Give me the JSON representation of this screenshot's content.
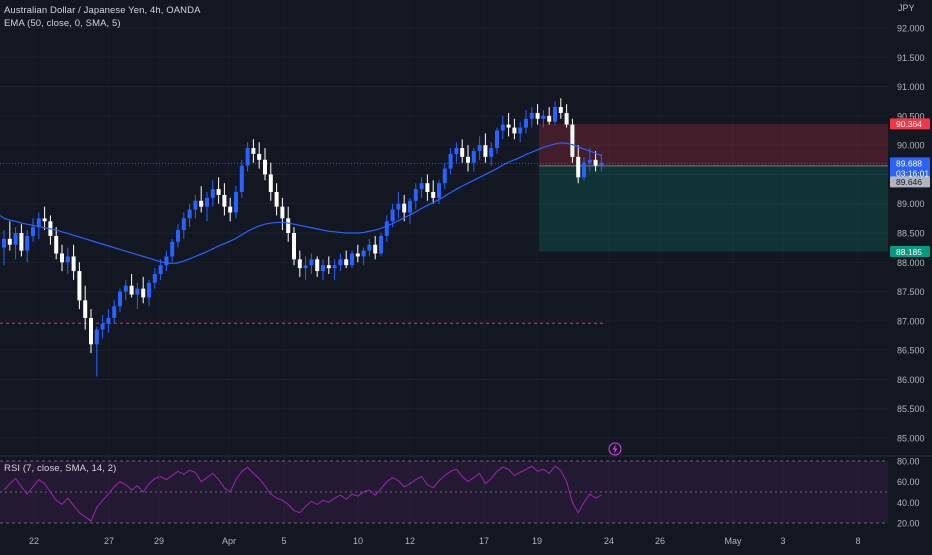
{
  "header": {
    "symbol_line": "Australian Dollar / Japanese Yen, 4h, OANDA",
    "indicator_line": "EMA (50, close, 0, SMA, 5)",
    "currency": "JPY"
  },
  "rsi_panel": {
    "label": "RSI (7, close, SMA, 14, 2)",
    "levels": [
      80,
      50,
      20
    ],
    "ticks": [
      "80.00",
      "60.00",
      "40.00",
      "20.00"
    ]
  },
  "price_axis": {
    "ticks": [
      "92.000",
      "91.500",
      "91.000",
      "90.500",
      "90.000",
      "89.500",
      "89.000",
      "88.500",
      "88.000",
      "87.500",
      "87.000",
      "86.500",
      "86.000",
      "85.500",
      "85.000"
    ],
    "ylim": [
      84.85,
      92.35
    ]
  },
  "price_labels": {
    "stop": "90.364",
    "current": "89.688",
    "countdown": "03:16:01",
    "entry": "89.646",
    "target": "88.185"
  },
  "colors": {
    "background": "#131722",
    "bull": "#2962ff",
    "bear": "#ffffff",
    "ema": "#2962ff",
    "rsi": "#9c27b0",
    "stop_zone": "#f23645",
    "target_zone": "#089981",
    "support_line": "#f23645"
  },
  "chart_data": {
    "type": "candlestick",
    "title": "Australian Dollar / Japanese Yen, 4h, OANDA",
    "x_axis": {
      "ticks": [
        "22",
        "27",
        "29",
        "Apr",
        "5",
        "10",
        "12",
        "17",
        "19",
        "24",
        "26",
        "May",
        "3",
        "8"
      ]
    },
    "support_level": 86.96,
    "ema_period": 50,
    "position": {
      "type": "short",
      "entry": 89.646,
      "stop": 90.364,
      "target": 88.185
    },
    "current_price": 89.688,
    "ohlc": [
      [
        88.25,
        88.55,
        87.95,
        88.4
      ],
      [
        88.4,
        88.7,
        88.2,
        88.3
      ],
      [
        88.3,
        88.6,
        88.05,
        88.5
      ],
      [
        88.5,
        88.65,
        88.1,
        88.2
      ],
      [
        88.2,
        88.55,
        88.0,
        88.45
      ],
      [
        88.45,
        88.75,
        88.35,
        88.6
      ],
      [
        88.6,
        88.85,
        88.4,
        88.75
      ],
      [
        88.75,
        88.95,
        88.55,
        88.7
      ],
      [
        88.7,
        88.8,
        88.3,
        88.45
      ],
      [
        88.45,
        88.6,
        88.05,
        88.15
      ],
      [
        88.15,
        88.3,
        87.85,
        88.0
      ],
      [
        88.0,
        88.25,
        87.8,
        88.1
      ],
      [
        88.1,
        88.3,
        87.7,
        87.85
      ],
      [
        87.85,
        88.0,
        87.2,
        87.35
      ],
      [
        87.35,
        87.6,
        86.85,
        87.05
      ],
      [
        87.05,
        87.2,
        86.45,
        86.6
      ],
      [
        86.6,
        86.9,
        86.05,
        86.85
      ],
      [
        86.85,
        87.1,
        86.7,
        86.95
      ],
      [
        86.95,
        87.2,
        86.8,
        87.05
      ],
      [
        87.05,
        87.35,
        86.95,
        87.25
      ],
      [
        87.25,
        87.55,
        87.15,
        87.5
      ],
      [
        87.5,
        87.7,
        87.35,
        87.6
      ],
      [
        87.6,
        87.8,
        87.4,
        87.45
      ],
      [
        87.45,
        87.65,
        87.2,
        87.55
      ],
      [
        87.55,
        87.75,
        87.3,
        87.4
      ],
      [
        87.4,
        87.7,
        87.25,
        87.65
      ],
      [
        87.65,
        87.9,
        87.55,
        87.8
      ],
      [
        87.8,
        88.05,
        87.7,
        87.95
      ],
      [
        87.95,
        88.2,
        87.85,
        88.1
      ],
      [
        88.1,
        88.4,
        88.0,
        88.35
      ],
      [
        88.35,
        88.65,
        88.25,
        88.55
      ],
      [
        88.55,
        88.85,
        88.4,
        88.75
      ],
      [
        88.75,
        89.0,
        88.6,
        88.9
      ],
      [
        88.9,
        89.15,
        88.75,
        89.05
      ],
      [
        89.05,
        89.3,
        88.85,
        88.95
      ],
      [
        88.95,
        89.2,
        88.7,
        89.1
      ],
      [
        89.1,
        89.4,
        88.95,
        89.25
      ],
      [
        89.25,
        89.45,
        89.0,
        89.15
      ],
      [
        89.15,
        89.35,
        88.8,
        88.95
      ],
      [
        88.95,
        89.1,
        88.7,
        88.85
      ],
      [
        88.85,
        89.3,
        88.75,
        89.2
      ],
      [
        89.2,
        89.75,
        89.1,
        89.65
      ],
      [
        89.65,
        90.05,
        89.55,
        89.95
      ],
      [
        89.95,
        90.1,
        89.7,
        89.85
      ],
      [
        89.85,
        90.05,
        89.6,
        89.75
      ],
      [
        89.75,
        89.95,
        89.4,
        89.5
      ],
      [
        89.5,
        89.7,
        89.05,
        89.2
      ],
      [
        89.2,
        89.35,
        88.8,
        88.95
      ],
      [
        88.95,
        89.1,
        88.55,
        88.75
      ],
      [
        88.75,
        88.95,
        88.35,
        88.5
      ],
      [
        88.5,
        88.6,
        87.95,
        88.05
      ],
      [
        88.05,
        88.2,
        87.75,
        87.9
      ],
      [
        87.9,
        88.1,
        87.7,
        87.95
      ],
      [
        87.95,
        88.15,
        87.8,
        88.05
      ],
      [
        88.05,
        88.1,
        87.75,
        87.85
      ],
      [
        87.85,
        88.05,
        87.7,
        87.95
      ],
      [
        87.95,
        88.1,
        87.8,
        87.9
      ],
      [
        87.9,
        88.05,
        87.7,
        87.95
      ],
      [
        87.95,
        88.15,
        87.85,
        88.05
      ],
      [
        88.05,
        88.2,
        87.9,
        87.95
      ],
      [
        87.95,
        88.2,
        87.9,
        88.15
      ],
      [
        88.15,
        88.3,
        88.0,
        88.1
      ],
      [
        88.1,
        88.25,
        87.95,
        88.2
      ],
      [
        88.2,
        88.4,
        88.1,
        88.3
      ],
      [
        88.3,
        88.45,
        88.05,
        88.15
      ],
      [
        88.15,
        88.5,
        88.1,
        88.45
      ],
      [
        88.45,
        88.8,
        88.35,
        88.7
      ],
      [
        88.7,
        89.0,
        88.6,
        88.9
      ],
      [
        88.9,
        89.2,
        88.75,
        89.0
      ],
      [
        89.0,
        89.15,
        88.7,
        88.85
      ],
      [
        88.85,
        89.1,
        88.65,
        89.05
      ],
      [
        89.05,
        89.35,
        88.9,
        89.25
      ],
      [
        89.25,
        89.45,
        89.1,
        89.35
      ],
      [
        89.35,
        89.5,
        89.05,
        89.2
      ],
      [
        89.2,
        89.4,
        89.0,
        89.1
      ],
      [
        89.1,
        89.4,
        89.0,
        89.35
      ],
      [
        89.35,
        89.7,
        89.25,
        89.6
      ],
      [
        89.6,
        89.95,
        89.5,
        89.85
      ],
      [
        89.85,
        90.05,
        89.7,
        89.95
      ],
      [
        89.95,
        90.1,
        89.7,
        89.8
      ],
      [
        89.8,
        90.0,
        89.55,
        89.7
      ],
      [
        89.7,
        89.95,
        89.55,
        89.9
      ],
      [
        89.9,
        90.15,
        89.75,
        90.0
      ],
      [
        90.0,
        90.2,
        89.7,
        89.8
      ],
      [
        89.8,
        90.05,
        89.65,
        89.95
      ],
      [
        89.95,
        90.3,
        89.85,
        90.25
      ],
      [
        90.25,
        90.5,
        90.1,
        90.35
      ],
      [
        90.35,
        90.55,
        90.15,
        90.3
      ],
      [
        90.3,
        90.45,
        90.1,
        90.2
      ],
      [
        90.2,
        90.4,
        90.05,
        90.3
      ],
      [
        90.3,
        90.6,
        90.2,
        90.45
      ],
      [
        90.45,
        90.65,
        90.3,
        90.55
      ],
      [
        90.55,
        90.7,
        90.35,
        90.45
      ],
      [
        90.45,
        90.6,
        90.3,
        90.5
      ],
      [
        90.5,
        90.65,
        90.35,
        90.4
      ],
      [
        90.4,
        90.75,
        90.35,
        90.65
      ],
      [
        90.65,
        90.8,
        90.45,
        90.55
      ],
      [
        90.55,
        90.7,
        90.3,
        90.35
      ],
      [
        90.35,
        90.45,
        89.7,
        89.8
      ],
      [
        89.8,
        90.0,
        89.35,
        89.45
      ],
      [
        89.45,
        89.8,
        89.4,
        89.7
      ],
      [
        89.7,
        89.95,
        89.55,
        89.75
      ],
      [
        89.75,
        89.9,
        89.55,
        89.65
      ],
      [
        89.65,
        89.85,
        89.55,
        89.7
      ]
    ],
    "ema": [
      88.75,
      88.72,
      88.7,
      88.67,
      88.65,
      88.63,
      88.61,
      88.59,
      88.57,
      88.55,
      88.52,
      88.49,
      88.46,
      88.43,
      88.4,
      88.37,
      88.34,
      88.31,
      88.28,
      88.25,
      88.22,
      88.19,
      88.16,
      88.13,
      88.1,
      88.07,
      88.04,
      88.01,
      87.99,
      87.98,
      87.99,
      88.02,
      88.06,
      88.1,
      88.14,
      88.18,
      88.23,
      88.28,
      88.32,
      88.36,
      88.41,
      88.47,
      88.53,
      88.58,
      88.62,
      88.65,
      88.67,
      88.68,
      88.68,
      88.67,
      88.65,
      88.63,
      88.61,
      88.59,
      88.57,
      88.55,
      88.53,
      88.52,
      88.51,
      88.5,
      88.5,
      88.5,
      88.51,
      88.53,
      88.55,
      88.58,
      88.62,
      88.66,
      88.71,
      88.76,
      88.81,
      88.86,
      88.92,
      88.97,
      89.02,
      89.07,
      89.13,
      89.19,
      89.25,
      89.3,
      89.35,
      89.4,
      89.45,
      89.5,
      89.55,
      89.6,
      89.66,
      89.71,
      89.75,
      89.79,
      89.84,
      89.88,
      89.92,
      89.96,
      89.99,
      90.02,
      90.04,
      90.03,
      90.01,
      89.97,
      89.93,
      89.9,
      89.86,
      89.82
    ],
    "rsi": [
      52,
      58,
      63,
      55,
      48,
      55,
      62,
      58,
      50,
      42,
      38,
      44,
      37,
      30,
      26,
      22,
      35,
      42,
      48,
      55,
      60,
      57,
      52,
      56,
      50,
      58,
      63,
      65,
      62,
      66,
      70,
      67,
      71,
      69,
      60,
      64,
      68,
      62,
      54,
      50,
      62,
      70,
      74,
      68,
      63,
      56,
      48,
      44,
      42,
      38,
      32,
      30,
      36,
      41,
      38,
      42,
      40,
      44,
      47,
      43,
      48,
      46,
      50,
      52,
      47,
      53,
      60,
      64,
      61,
      55,
      58,
      62,
      65,
      57,
      54,
      61,
      66,
      70,
      72,
      65,
      60,
      64,
      68,
      58,
      63,
      70,
      74,
      72,
      66,
      69,
      72,
      75,
      70,
      72,
      68,
      75,
      71,
      60,
      40,
      30,
      40,
      48,
      44,
      47
    ]
  }
}
